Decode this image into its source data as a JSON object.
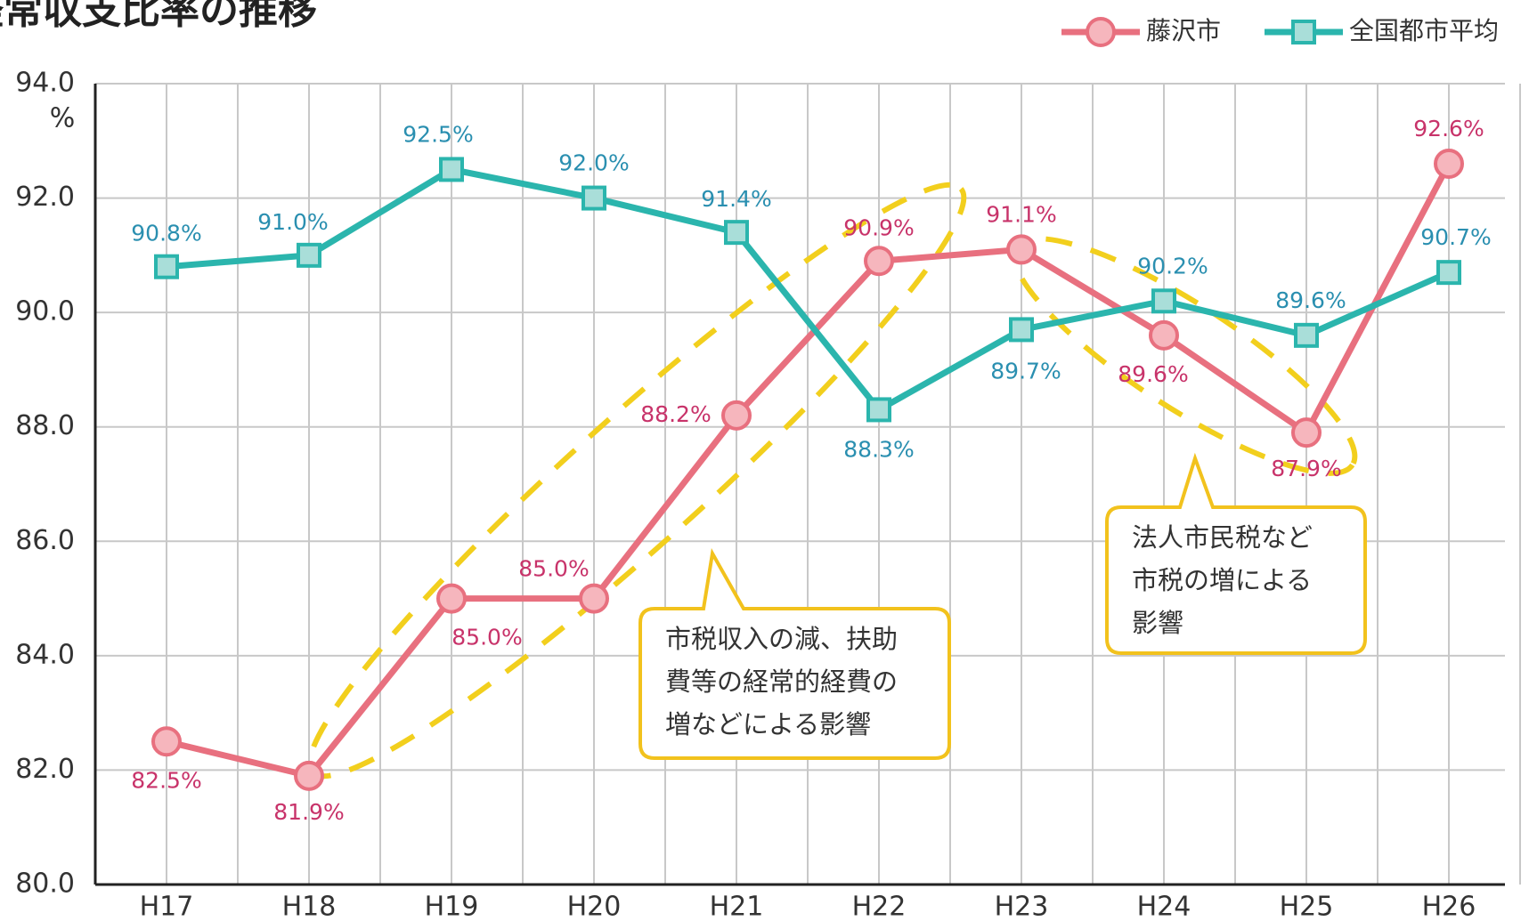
{
  "chart_data": {
    "type": "line",
    "title": "経常収支比率の推移",
    "y_unit": "%",
    "categories": [
      "H17",
      "H18",
      "H19",
      "H20",
      "H21",
      "H22",
      "H23",
      "H24",
      "H25",
      "H26"
    ],
    "series": [
      {
        "name": "藤沢市",
        "color": "#e8707f",
        "values": [
          82.5,
          81.9,
          85.0,
          85.0,
          88.2,
          90.9,
          91.1,
          89.6,
          87.9,
          92.6
        ],
        "value_labels": [
          "82.5%",
          "81.9%",
          "85.0%",
          "85.0%",
          "88.2%",
          "90.9%",
          "91.1%",
          "89.6%",
          "87.9%",
          "92.6%"
        ]
      },
      {
        "name": "全国都市平均",
        "color": "#2bb5ad",
        "values": [
          90.8,
          91.0,
          92.5,
          92.0,
          91.4,
          88.3,
          89.7,
          90.2,
          89.6,
          90.7
        ],
        "value_labels": [
          "90.8%",
          "91.0%",
          "92.5%",
          "92.0%",
          "91.4%",
          "88.3%",
          "89.7%",
          "90.2%",
          "89.6%",
          "90.7%"
        ]
      }
    ],
    "ylim": [
      80,
      94
    ],
    "yticks": [
      {
        "value": 80,
        "label": "80.0"
      },
      {
        "value": 82,
        "label": "82.0"
      },
      {
        "value": 84,
        "label": "84.0"
      },
      {
        "value": 86,
        "label": "86.0"
      },
      {
        "value": 88,
        "label": "88.0"
      },
      {
        "value": 90,
        "label": "90.0"
      },
      {
        "value": 92,
        "label": "92.0"
      },
      {
        "value": 94,
        "label": "94.0"
      }
    ],
    "grid": true,
    "legend": "top-right",
    "annotations": [
      {
        "lines": [
          "市税収入の減、扶助",
          "費等の経常的経費の",
          "増などによる影響"
        ]
      },
      {
        "lines": [
          "法人市民税など",
          "市税の増による",
          "影響"
        ]
      }
    ]
  }
}
